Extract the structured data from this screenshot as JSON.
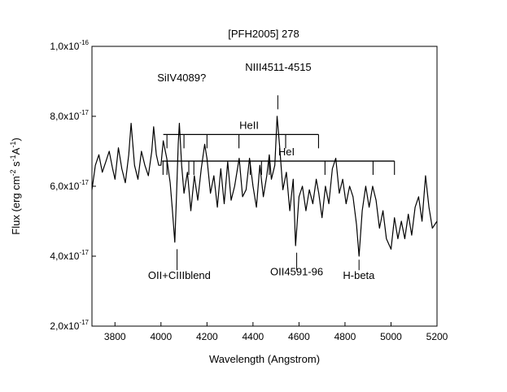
{
  "chart_data": {
    "type": "line",
    "title": "[PFH2005] 278",
    "xlabel": "Wavelength (Angstrom)",
    "ylabel": {
      "flux": "Flux (erg cm",
      "exp1": "-2",
      "s": " s",
      "exp2": "-1",
      "A": "A",
      "exp3": "-1",
      "close": ")"
    },
    "xlim": [
      3700,
      5200
    ],
    "ylim": [
      2e-17,
      1e-16
    ],
    "x_ticks": [
      {
        "value": 3800,
        "label": "3800"
      },
      {
        "value": 4000,
        "label": "4000"
      },
      {
        "value": 4200,
        "label": "4200"
      },
      {
        "value": 4400,
        "label": "4400"
      },
      {
        "value": 4600,
        "label": "4600"
      },
      {
        "value": 4800,
        "label": "4800"
      },
      {
        "value": 5000,
        "label": "5000"
      },
      {
        "value": 5200,
        "label": "5200"
      }
    ],
    "y_ticks": [
      {
        "value": 2e-17,
        "label": "2,0x10",
        "exp": "-17"
      },
      {
        "value": 4e-17,
        "label": "4,0x10",
        "exp": "-17"
      },
      {
        "value": 6e-17,
        "label": "6,0x10",
        "exp": "-17"
      },
      {
        "value": 8e-17,
        "label": "8,0x10",
        "exp": "-17"
      },
      {
        "value": 1e-16,
        "label": "1,0x10",
        "exp": "-16"
      }
    ],
    "series": [
      {
        "name": "spectrum",
        "x": [
          3700,
          3715,
          3730,
          3745,
          3760,
          3775,
          3790,
          3800,
          3815,
          3830,
          3845,
          3860,
          3870,
          3885,
          3900,
          3915,
          3930,
          3945,
          3960,
          3968,
          3980,
          3990,
          4000,
          4010,
          4025,
          4040,
          4050,
          4060,
          4068,
          4075,
          4080,
          4090,
          4100,
          4115,
          4130,
          4145,
          4160,
          4175,
          4190,
          4200,
          4215,
          4230,
          4245,
          4260,
          4275,
          4290,
          4305,
          4320,
          4340,
          4355,
          4370,
          4385,
          4400,
          4415,
          4430,
          4445,
          4460,
          4471,
          4480,
          4495,
          4505,
          4515,
          4530,
          4545,
          4560,
          4575,
          4585,
          4600,
          4615,
          4630,
          4645,
          4660,
          4675,
          4686,
          4700,
          4715,
          4730,
          4745,
          4760,
          4775,
          4790,
          4805,
          4820,
          4835,
          4850,
          4861,
          4875,
          4890,
          4905,
          4920,
          4935,
          4950,
          4965,
          4980,
          5000,
          5015,
          5030,
          5045,
          5060,
          5075,
          5090,
          5105,
          5120,
          5135,
          5150,
          5165,
          5180,
          5200
        ],
        "y": [
          5.9e-17,
          6.6e-17,
          6.9e-17,
          6.4e-17,
          6.7e-17,
          7e-17,
          6.5e-17,
          6.2e-17,
          7.1e-17,
          6.5e-17,
          6.1e-17,
          6.9e-17,
          7.8e-17,
          6.6e-17,
          6.2e-17,
          7e-17,
          6.6e-17,
          6.3e-17,
          7e-17,
          7.7e-17,
          6.9e-17,
          6.6e-17,
          6.6e-17,
          7.3e-17,
          6.8e-17,
          6.1e-17,
          5.3e-17,
          4.4e-17,
          5.8e-17,
          7.2e-17,
          7.8e-17,
          6.6e-17,
          5.8e-17,
          6.4e-17,
          5.3e-17,
          6.3e-17,
          5.6e-17,
          6.5e-17,
          7.2e-17,
          6.8e-17,
          5.8e-17,
          6.3e-17,
          5.4e-17,
          6.5e-17,
          5.5e-17,
          6.7e-17,
          5.6e-17,
          6e-17,
          6.8e-17,
          5.7e-17,
          5.9e-17,
          6.8e-17,
          6e-17,
          5.4e-17,
          6.6e-17,
          5.7e-17,
          6.3e-17,
          6.9e-17,
          6.2e-17,
          6.6e-17,
          8e-17,
          7.2e-17,
          5.9e-17,
          6.4e-17,
          5.3e-17,
          6.2e-17,
          4.3e-17,
          5.7e-17,
          6e-17,
          5.3e-17,
          5.9e-17,
          5.5e-17,
          6.2e-17,
          5.8e-17,
          5.1e-17,
          6e-17,
          5.5e-17,
          6.5e-17,
          6.8e-17,
          5.8e-17,
          6.2e-17,
          5.5e-17,
          6e-17,
          5.7e-17,
          4.9e-17,
          4e-17,
          5.3e-17,
          6e-17,
          5.4e-17,
          6e-17,
          5.6e-17,
          4.8e-17,
          5.3e-17,
          4.5e-17,
          4.2e-17,
          5.1e-17,
          4.5e-17,
          5e-17,
          4.5e-17,
          5.2e-17,
          4.6e-17,
          5.4e-17,
          5.7e-17,
          5e-17,
          6.3e-17,
          5.4e-17,
          4.8e-17,
          5e-17
        ]
      }
    ],
    "series_lines": [
      {
        "name": "HeII",
        "label": "HeII",
        "y": 7.48e-17,
        "x_start": 4010,
        "x_end": 4685,
        "ticks": [
          4026,
          4100,
          4200,
          4339,
          4542,
          4685
        ]
      },
      {
        "name": "HeI",
        "label": "HeI",
        "y": 6.72e-17,
        "x_start": 4005,
        "x_end": 5015,
        "ticks": [
          4009,
          4026,
          4121,
          4143,
          4388,
          4437,
          4471,
          4713,
          4922,
          5015
        ]
      }
    ],
    "annotations": [
      {
        "name": "siiv-label",
        "label": "SiIV4089?",
        "text_x": 4090,
        "text_y": 9e-17
      },
      {
        "name": "niii-label",
        "label": "NIII4511-4515",
        "text_x": 4510,
        "text_y": 9.3e-17,
        "tick_x": 4508,
        "tick_from": 8.6e-17,
        "tick_to": 8.2e-17
      },
      {
        "name": "oii-ciii-label",
        "label": "OII+CIIIblend",
        "text_x": 4080,
        "text_y": 3.35e-17,
        "tick_x": 4070,
        "tick_from": 4.2e-17,
        "tick_to": 3.6e-17
      },
      {
        "name": "oii4591-label",
        "label": "OII4591-96",
        "text_x": 4590,
        "text_y": 3.45e-17,
        "tick_x": 4590,
        "tick_from": 4.1e-17,
        "tick_to": 3.6e-17
      },
      {
        "name": "hbeta-label",
        "label": "H-beta",
        "text_x": 4860,
        "text_y": 3.35e-17,
        "tick_x": 4861,
        "tick_from": 3.9e-17,
        "tick_to": 3.6e-17
      }
    ]
  }
}
